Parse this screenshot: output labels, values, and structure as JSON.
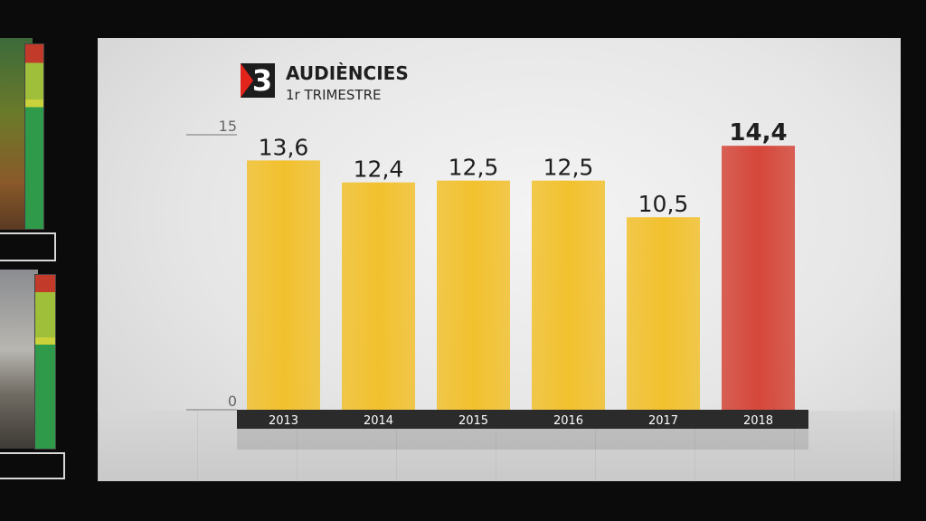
{
  "header": {
    "title": "AUDIÈNCIES",
    "subtitle": "1r TRIMESTRE",
    "logo_text": "3"
  },
  "chart_data": {
    "type": "bar",
    "title": "AUDIÈNCIES",
    "subtitle": "1r TRIMESTRE",
    "categories": [
      "2013",
      "2014",
      "2015",
      "2016",
      "2017",
      "2018"
    ],
    "values": [
      13.6,
      12.4,
      12.5,
      12.5,
      10.5,
      14.4
    ],
    "value_labels": [
      "13,6",
      "12,4",
      "12,5",
      "12,5",
      "10,5",
      "14,4"
    ],
    "ylim": [
      0,
      15
    ],
    "yticks": [
      "0",
      "15"
    ],
    "highlight_index": 5,
    "colors": {
      "bar": "#f2c12e",
      "highlight": "#d5473a",
      "axis_band": "#2b2b2b"
    },
    "grid": false
  }
}
